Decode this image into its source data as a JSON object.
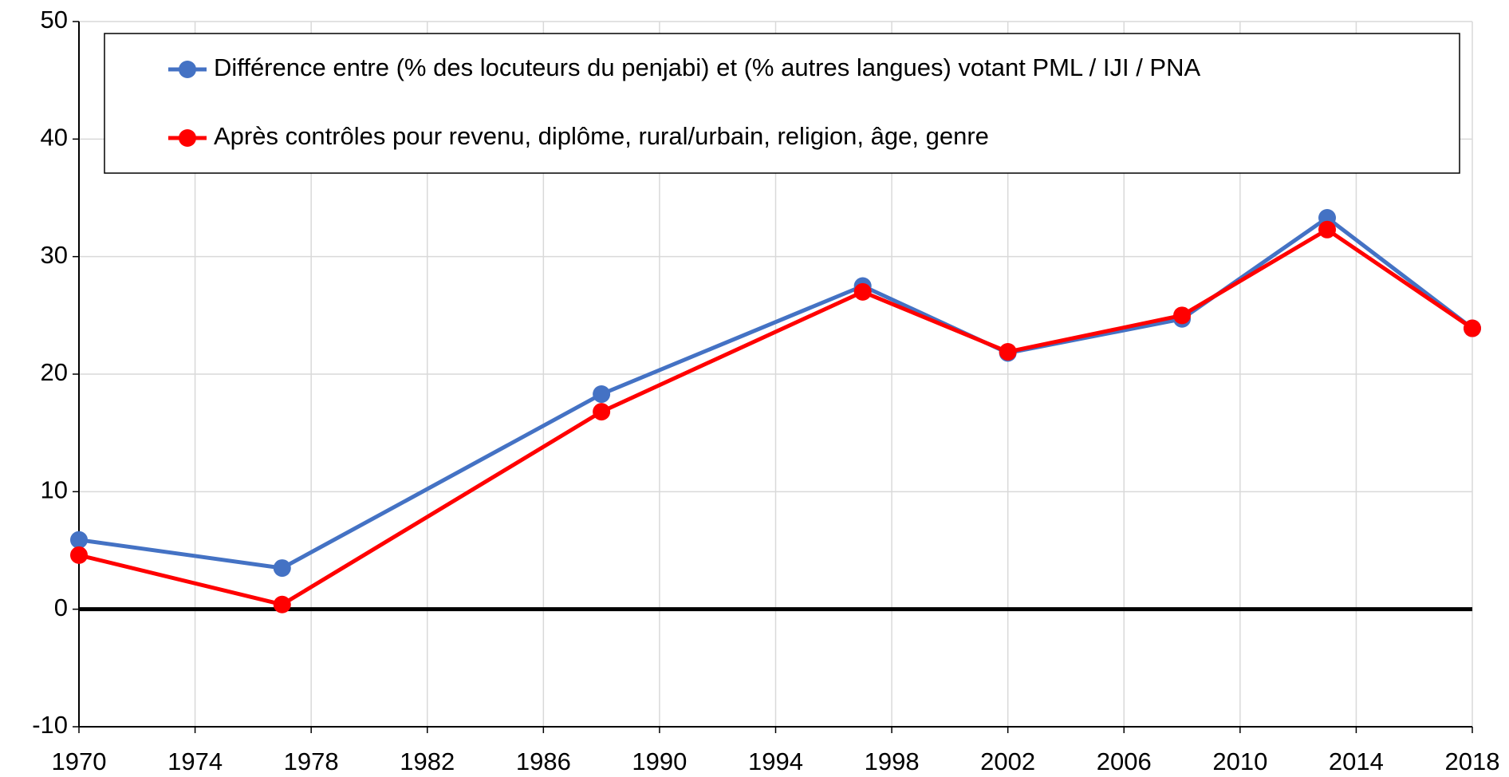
{
  "chart_data": {
    "type": "line",
    "x": [
      1970,
      1977,
      1988,
      1997,
      2002,
      2008,
      2013,
      2018
    ],
    "series": [
      {
        "name": "Différence entre (% des locuteurs du penjabi) et (% autres langues) votant PML / IJI / PNA",
        "color": "#4472c4",
        "values": [
          5.9,
          3.5,
          18.3,
          27.5,
          21.8,
          24.7,
          33.3,
          23.9
        ]
      },
      {
        "name": "Après contrôles pour revenu, diplôme, rural/urbain, religion, âge, genre",
        "color": "#ff0000",
        "values": [
          4.6,
          0.4,
          16.8,
          27.0,
          21.9,
          25.0,
          32.3,
          23.9
        ]
      }
    ],
    "xlim": [
      1970,
      2018
    ],
    "xticks": [
      1970,
      1974,
      1978,
      1982,
      1986,
      1990,
      1994,
      1998,
      2002,
      2006,
      2010,
      2014,
      2018
    ],
    "ylim": [
      -10,
      50
    ],
    "yticks": [
      -10,
      0,
      10,
      20,
      30,
      40,
      50
    ],
    "grid": true,
    "legend": "top"
  }
}
